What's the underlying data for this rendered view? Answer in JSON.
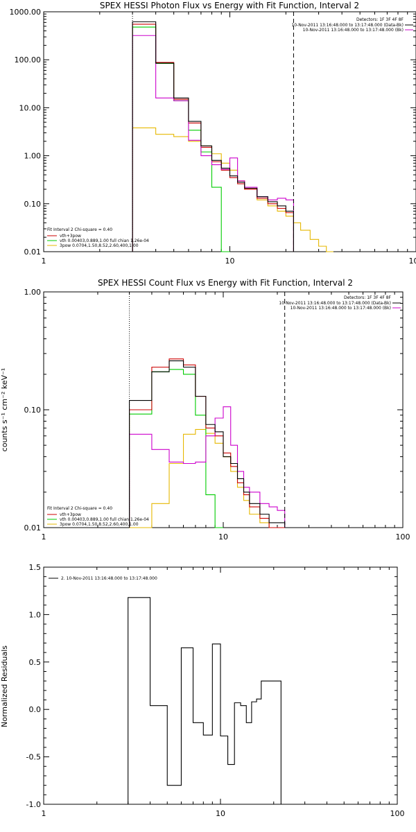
{
  "chart_data": [
    {
      "type": "line",
      "title": "SPEX HESSI Photon Flux vs Energy with Fit Function, Interval 2",
      "xlabel": "",
      "ylabel": "",
      "xscale": "log",
      "yscale": "log",
      "xlim": [
        1,
        100
      ],
      "ylim": [
        0.01,
        1000
      ],
      "x_ticks": [
        "1",
        "10",
        "100"
      ],
      "y_ticks": [
        "0.01",
        "0.10",
        "1.00",
        "10.00",
        "100.00",
        "1000.00"
      ],
      "vlines": [
        {
          "x": 3.0,
          "style": "dotted"
        },
        {
          "x": 22.0,
          "style": "dashed"
        }
      ],
      "legend_top": [
        "Detectors: 1F 3F 4F 8F",
        "10-Nov-2011 13:16:48.000 to 13:17:48.000 (Data-Bk)",
        "10-Nov-2011 13:16:48.000 to 13:17:48.000 (Bk)"
      ],
      "legend_bottom": [
        "Fit Interval 2   Chi-square = 0.40",
        "vth+3pow",
        "vth 0.00403,0.889,1.00  full chian 1.26e-04",
        "3pow 0.0704,1.50,8.52,2.60,400,1.00"
      ],
      "series": [
        {
          "name": "Data-Bk",
          "color": "#000000",
          "style": "step",
          "edges": [
            3.0,
            4.0,
            5.0,
            6.0,
            7.0,
            8.0,
            9.0,
            10.0,
            11.0,
            12.0,
            14.0,
            16.0,
            18.0,
            20.0,
            22.0
          ],
          "values": [
            620,
            85,
            16,
            5.2,
            1.6,
            0.8,
            0.55,
            0.38,
            0.28,
            0.21,
            0.14,
            0.11,
            0.09,
            0.07
          ]
        },
        {
          "name": "Bk",
          "color": "#cc00cc",
          "style": "step",
          "edges": [
            3.0,
            4.0,
            5.0,
            6.0,
            7.0,
            8.0,
            9.0,
            10.0,
            11.0,
            12.0,
            14.0,
            16.0,
            18.0,
            20.0,
            22.0
          ],
          "values": [
            320,
            16,
            14,
            2.1,
            1.0,
            0.65,
            0.52,
            0.9,
            0.3,
            0.22,
            0.14,
            0.12,
            0.13,
            0.12
          ]
        },
        {
          "name": "vth+3pow",
          "color": "#cc0000",
          "style": "step",
          "edges": [
            3.0,
            4.0,
            5.0,
            6.0,
            7.0,
            8.0,
            9.0,
            10.0,
            11.0,
            12.0,
            14.0,
            16.0,
            18.0,
            20.0,
            22.0
          ],
          "values": [
            550,
            88,
            15,
            4.8,
            1.5,
            0.75,
            0.5,
            0.35,
            0.26,
            0.2,
            0.13,
            0.1,
            0.08,
            0.065
          ]
        },
        {
          "name": "vth",
          "color": "#00cc00",
          "style": "step",
          "edges": [
            3.0,
            4.0,
            5.0,
            6.0,
            7.0,
            8.0,
            9.0,
            10.0
          ],
          "values": [
            480,
            84,
            14,
            3.4,
            1.2,
            0.22,
            0.01
          ]
        },
        {
          "name": "3pow",
          "color": "#e6b800",
          "style": "step",
          "edges": [
            3.0,
            4.0,
            5.0,
            6.0,
            7.0,
            8.0,
            9.0,
            10.0,
            11.0,
            12.0,
            14.0,
            16.0,
            18.0,
            20.0,
            22.0,
            24.0,
            27.0,
            30.0,
            33.0,
            36.0
          ],
          "values": [
            3.8,
            2.8,
            2.5,
            2.0,
            1.6,
            1.1,
            0.7,
            0.5,
            0.3,
            0.2,
            0.12,
            0.09,
            0.07,
            0.055,
            0.04,
            0.028,
            0.018,
            0.013,
            0.01
          ]
        }
      ]
    },
    {
      "type": "line",
      "title": "SPEX HESSI Count Flux vs Energy with Fit Function, Interval 2",
      "xlabel": "",
      "ylabel": "counts s⁻¹ cm⁻² keV⁻¹",
      "xscale": "log",
      "yscale": "log",
      "xlim": [
        1,
        100
      ],
      "ylim": [
        0.01,
        1.0
      ],
      "x_ticks": [
        "1",
        "10",
        "100"
      ],
      "y_ticks": [
        "0.01",
        "0.10",
        "1.00"
      ],
      "vlines": [
        {
          "x": 3.0,
          "style": "dotted"
        },
        {
          "x": 22.0,
          "style": "dashed"
        }
      ],
      "legend_top": [
        "Detectors: 1F 3F 4F 8F",
        "10-Nov-2011 13:16:48.000 to 13:17:48.000 (Data-Bk)",
        "10-Nov-2011 13:16:48.000 to 13:17:48.000 (Bk)"
      ],
      "legend_bottom": [
        "Fit Interval 2   Chi-square = 0.40",
        "vth+3pow",
        "vth 0.00403,0.889,1.00  full chian 1.26e-04",
        "3pow 0.0704,1.50,8.52,2.60,400,1.00"
      ],
      "series": [
        {
          "name": "Data-Bk",
          "color": "#000000",
          "style": "step",
          "edges": [
            3.0,
            4.0,
            5.0,
            6.0,
            7.0,
            8.0,
            9.0,
            10.0,
            11.0,
            12.0,
            13.0,
            14.0,
            16.0,
            18.0,
            20.0,
            22.0
          ],
          "values": [
            0.12,
            0.21,
            0.26,
            0.23,
            0.13,
            0.075,
            0.065,
            0.04,
            0.035,
            0.026,
            0.02,
            0.016,
            0.013,
            0.011,
            0.011
          ]
        },
        {
          "name": "Bk",
          "color": "#cc00cc",
          "style": "step",
          "edges": [
            3.0,
            4.0,
            5.0,
            6.0,
            7.0,
            8.0,
            9.0,
            10.0,
            11.0,
            12.0,
            13.0,
            14.0,
            16.0,
            18.0,
            20.0,
            22.0
          ],
          "values": [
            0.062,
            0.046,
            0.036,
            0.035,
            0.036,
            0.06,
            0.085,
            0.106,
            0.05,
            0.03,
            0.022,
            0.02,
            0.016,
            0.015,
            0.014
          ]
        },
        {
          "name": "vth+3pow",
          "color": "#cc0000",
          "style": "step",
          "edges": [
            3.0,
            4.0,
            5.0,
            6.0,
            7.0,
            8.0,
            9.0,
            10.0,
            11.0,
            12.0,
            13.0,
            14.0,
            16.0,
            18.0,
            20.0,
            22.0
          ],
          "values": [
            0.1,
            0.23,
            0.27,
            0.24,
            0.13,
            0.07,
            0.06,
            0.043,
            0.033,
            0.024,
            0.019,
            0.015,
            0.012,
            0.01,
            0.0095
          ]
        },
        {
          "name": "vth",
          "color": "#00cc00",
          "style": "step",
          "edges": [
            3.0,
            4.0,
            5.0,
            6.0,
            7.0,
            8.0,
            9.0,
            10.0
          ],
          "values": [
            0.092,
            0.21,
            0.22,
            0.2,
            0.09,
            0.019,
            0.01
          ]
        },
        {
          "name": "3pow",
          "color": "#e6b800",
          "style": "step",
          "edges": [
            3.0,
            4.0,
            5.0,
            6.0,
            7.0,
            8.0,
            9.0,
            10.0,
            11.0,
            12.0,
            13.0,
            14.0,
            16.0,
            18.0,
            20.0
          ],
          "values": [
            0.01,
            0.016,
            0.035,
            0.062,
            0.068,
            0.063,
            0.052,
            0.04,
            0.03,
            0.022,
            0.017,
            0.013,
            0.011,
            0.0095
          ]
        }
      ]
    },
    {
      "type": "line",
      "title": "",
      "xlabel": "",
      "ylabel": "Normalized Residuals",
      "xscale": "log",
      "yscale": "linear",
      "xlim": [
        1,
        100
      ],
      "ylim": [
        -1.0,
        1.5
      ],
      "x_ticks": [
        "1",
        "10",
        "100"
      ],
      "y_ticks": [
        "-1.0",
        "-0.5",
        "0.0",
        "0.5",
        "1.0",
        "1.5"
      ],
      "legend_top": [
        "2. 10-Nov-2011 13:16:48.000 to 13:17:48.000"
      ],
      "series": [
        {
          "name": "2. 10-Nov-2011 13:16:48.000 to 13:17:48.000",
          "color": "#000000",
          "style": "step",
          "baseline": -1.0,
          "edges": [
            3.0,
            4.0,
            5.0,
            6.0,
            7.0,
            8.0,
            9.0,
            10.0,
            11.0,
            12.0,
            13.0,
            14.0,
            15.0,
            16.0,
            17.0,
            18.0,
            20.0,
            22.0
          ],
          "values": [
            1.18,
            0.04,
            -0.8,
            0.65,
            -0.14,
            -0.27,
            0.69,
            -0.28,
            -0.58,
            0.07,
            0.04,
            -0.14,
            0.08,
            0.11,
            0.3,
            0.3,
            0.3
          ]
        }
      ]
    }
  ]
}
